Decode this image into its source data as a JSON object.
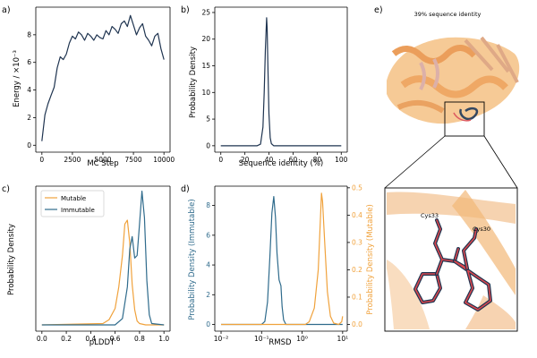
{
  "colors": {
    "dark": "#1f3450",
    "blue": "#2f6b8c",
    "orange": "#f0a23c",
    "red": "#d9474e"
  },
  "chart_data": [
    {
      "panel_label": "a)",
      "type": "line",
      "xlabel": "MC Step",
      "ylabel": "Energy / ×10⁻³",
      "xlim": [
        0,
        10000
      ],
      "ylim": [
        0,
        10
      ],
      "xticks": [
        "0",
        "2500",
        "5000",
        "7500",
        "10000"
      ],
      "yticks": [
        "0",
        "2",
        "4",
        "6",
        "8"
      ],
      "x": [
        0,
        250,
        500,
        750,
        1000,
        1250,
        1500,
        1750,
        2000,
        2250,
        2500,
        2750,
        3000,
        3250,
        3500,
        3750,
        4000,
        4250,
        4500,
        4750,
        5000,
        5250,
        5500,
        5750,
        6000,
        6250,
        6500,
        6750,
        7000,
        7250,
        7500,
        7750,
        8000,
        8250,
        8500,
        8750,
        9000,
        9250,
        9500,
        9750,
        10000
      ],
      "y": [
        0.3,
        2.2,
        3.0,
        3.6,
        4.2,
        5.6,
        6.4,
        6.2,
        6.6,
        7.4,
        7.9,
        7.7,
        8.2,
        8.0,
        7.6,
        8.1,
        7.9,
        7.6,
        8.0,
        7.8,
        7.7,
        8.3,
        8.0,
        8.6,
        8.4,
        8.1,
        8.8,
        9.0,
        8.6,
        9.4,
        8.7,
        8.0,
        8.5,
        8.8,
        7.9,
        7.6,
        7.2,
        7.9,
        8.1,
        7.0,
        6.2
      ]
    },
    {
      "panel_label": "b)",
      "type": "line",
      "xlabel": "Sequence identity (%)",
      "ylabel": "Probability Density",
      "xlim": [
        0,
        100
      ],
      "ylim": [
        0,
        25
      ],
      "xticks": [
        "0",
        "20",
        "40",
        "60",
        "80",
        "100"
      ],
      "yticks": [
        "0",
        "5",
        "10",
        "15",
        "20",
        "25"
      ],
      "x": [
        0,
        30,
        33,
        35,
        36,
        37,
        38,
        38.5,
        39,
        40,
        41,
        42,
        44,
        50,
        100
      ],
      "y": [
        0,
        0,
        0.3,
        3.5,
        10,
        18,
        24,
        22,
        16,
        6,
        1.5,
        0.4,
        0,
        0,
        0
      ]
    },
    {
      "panel_label": "c)",
      "type": "line",
      "xlabel": "pLDDT",
      "ylabel": "Probability Density",
      "xlim": [
        0,
        1
      ],
      "ylim": [
        0,
        10.5
      ],
      "xticks": [
        "0.0",
        "0.2",
        "0.4",
        "0.6",
        "0.8",
        "1.0"
      ],
      "legend": [
        "Mutable",
        "Immutable"
      ],
      "series": [
        {
          "name": "Mutable",
          "x": [
            0,
            0.5,
            0.55,
            0.6,
            0.63,
            0.66,
            0.68,
            0.7,
            0.72,
            0.74,
            0.76,
            0.78,
            0.8,
            0.85,
            1.0
          ],
          "y": [
            0,
            0.1,
            0.4,
            1.3,
            3,
            5.5,
            8,
            8.3,
            6.5,
            3.2,
            1.2,
            0.3,
            0.1,
            0,
            0
          ]
        },
        {
          "name": "Immutable",
          "x": [
            0,
            0.6,
            0.66,
            0.7,
            0.72,
            0.74,
            0.76,
            0.78,
            0.8,
            0.82,
            0.84,
            0.86,
            0.88,
            0.9,
            1.0
          ],
          "y": [
            0,
            0,
            0.5,
            3,
            6,
            7,
            5.3,
            5.5,
            8,
            10.6,
            8.5,
            3.5,
            0.8,
            0.1,
            0
          ]
        }
      ]
    },
    {
      "panel_label": "d)",
      "type": "line",
      "xlabel": "RMSD",
      "ylabel": "Probability Density (Immutable)",
      "ylabel_right": "Probability Density (Mutable)",
      "xlim": [
        0.01,
        10
      ],
      "x_scale": "log",
      "ylim": [
        0,
        9.2
      ],
      "ylim_right": [
        0,
        0.5
      ],
      "xticks": [
        "10⁻²",
        "10⁻¹",
        "10⁰",
        "10¹"
      ],
      "yticks": [
        "0",
        "2",
        "4",
        "6",
        "8"
      ],
      "yticks_right": [
        "0.0",
        "0.1",
        "0.2",
        "0.3",
        "0.4",
        "0.5"
      ],
      "series": [
        {
          "name": "Immutable",
          "axis": "left",
          "x": [
            0.01,
            0.1,
            0.12,
            0.14,
            0.16,
            0.18,
            0.2,
            0.22,
            0.24,
            0.27,
            0.3,
            0.32,
            0.35,
            0.4,
            10
          ],
          "y": [
            0,
            0,
            0.2,
            1.5,
            4.5,
            7.5,
            8.6,
            7.2,
            4.8,
            3,
            2.6,
            1.2,
            0.3,
            0,
            0
          ]
        },
        {
          "name": "Mutable",
          "axis": "right",
          "x": [
            0.01,
            1.2,
            1.5,
            2.0,
            2.5,
            2.8,
            3.0,
            3.2,
            3.6,
            4.2,
            5.0,
            6.0,
            8.0,
            9.5,
            10
          ],
          "y": [
            0,
            0,
            0.01,
            0.06,
            0.2,
            0.37,
            0.48,
            0.45,
            0.3,
            0.12,
            0.03,
            0.005,
            0,
            0.01,
            0.03
          ]
        }
      ]
    }
  ],
  "panel_e": {
    "label": "e)",
    "title": "39% sequence identity",
    "residue_1": "Cys33",
    "residue_2": "Cys30"
  }
}
